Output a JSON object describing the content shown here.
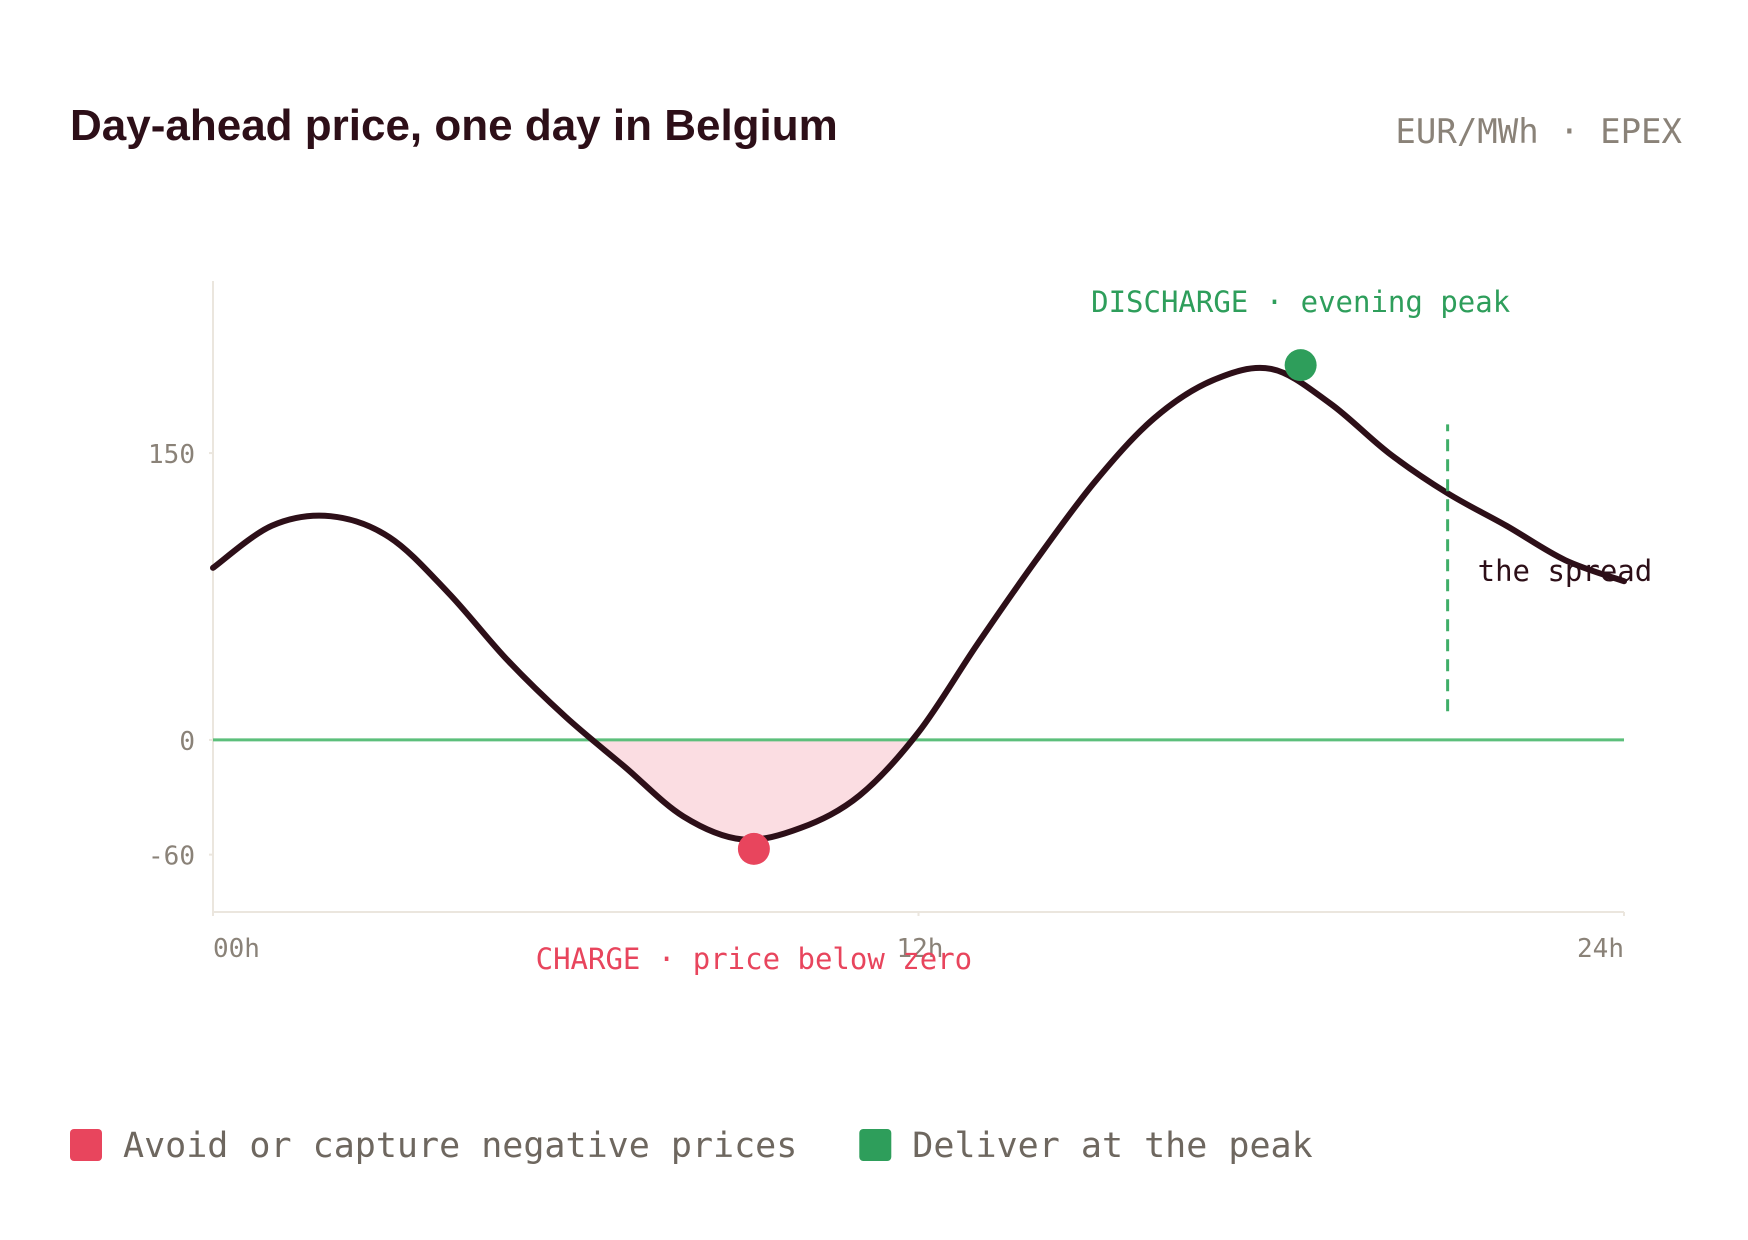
{
  "chart_data": {
    "type": "line",
    "title": "Day-ahead price, one day in Belgium",
    "subtitle": "EUR/MWh · EPEX",
    "x": [
      0,
      1,
      2,
      3,
      4,
      5,
      6,
      7,
      8,
      9,
      10,
      11,
      12,
      13,
      14,
      15,
      16,
      17,
      18,
      19,
      20,
      21,
      22,
      23,
      24
    ],
    "series": [
      {
        "name": "price",
        "color": "#2d0f18",
        "values": [
          90,
          112,
          117,
          106,
          77,
          42,
          12,
          -14,
          -40,
          -52,
          -46,
          -29,
          4,
          50,
          94,
          135,
          168,
          188,
          194,
          176,
          150,
          129,
          112,
          94,
          83
        ]
      }
    ],
    "xlim": [
      0,
      24
    ],
    "xticks": [
      {
        "value": 0,
        "label": "00h"
      },
      {
        "value": 12,
        "label": "12h"
      },
      {
        "value": 24,
        "label": "24h"
      }
    ],
    "ylim": [
      -90,
      240
    ],
    "yticks": [
      150,
      0,
      -60
    ],
    "zero_line_color": "#5cbf7b",
    "negative_fill": "#fbdde2",
    "markers": [
      {
        "x": 9.2,
        "y": -57,
        "color": "#e8455d",
        "label": "CHARGE · price below zero"
      },
      {
        "x": 18.5,
        "y": 196,
        "color": "#2e9e5b",
        "label": "DISCHARGE · evening peak"
      }
    ],
    "spread": {
      "x": 21,
      "y1": 15,
      "y2": 165,
      "label": "the spread",
      "color": "#3fae68"
    },
    "legend": [
      {
        "name": "Avoid or capture negative prices",
        "color": "#e8455d"
      },
      {
        "name": "Deliver at the peak",
        "color": "#2e9e5b"
      }
    ]
  }
}
